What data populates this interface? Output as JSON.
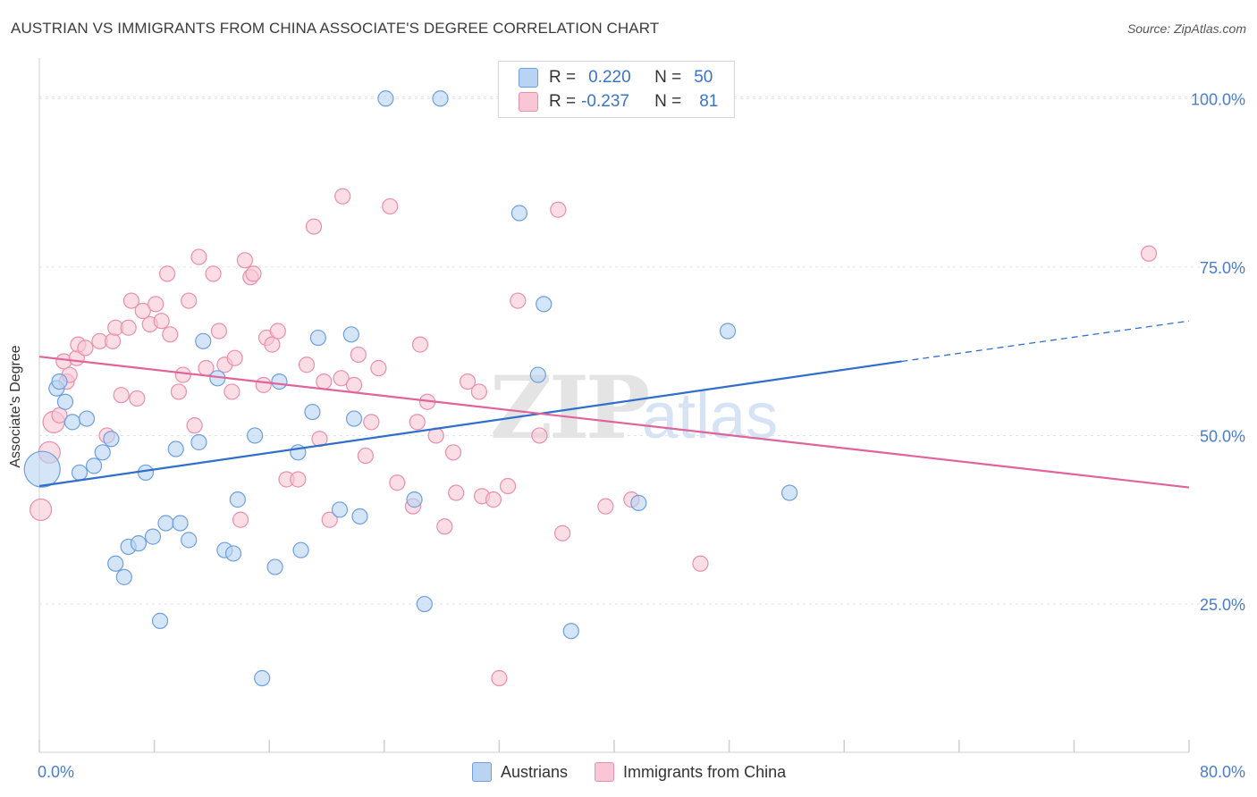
{
  "title": "AUSTRIAN VS IMMIGRANTS FROM CHINA ASSOCIATE'S DEGREE CORRELATION CHART",
  "source": "Source: ZipAtlas.com",
  "watermark": {
    "zip": "ZIP",
    "atlas": "atlas"
  },
  "legend": {
    "austrians": {
      "r_label": "R =",
      "r_value": "0.220",
      "n_label": "N =",
      "n_value": "50"
    },
    "china": {
      "r_label": "R =",
      "r_value": "-0.237",
      "n_label": "N =",
      "n_value": "81"
    }
  },
  "bottom_legend": {
    "austrians": "Austrians",
    "china": "Immigrants from China"
  },
  "colors": {
    "blue_fill": "#b9d3f3",
    "blue_stroke": "#6d9fe0",
    "blue_line": "#2f6fca",
    "pink_fill": "#f8c6d4",
    "pink_stroke": "#e98fab",
    "pink_line": "#e0649a",
    "tick_label": "#4a7dcc",
    "grid": "#e2e2e2"
  },
  "chart_data": {
    "type": "scatter",
    "title": "AUSTRIAN VS IMMIGRANTS FROM CHINA ASSOCIATE'S DEGREE CORRELATION CHART",
    "xlabel": "",
    "ylabel": "Associate's Degree",
    "xlim": [
      0,
      80
    ],
    "ylim": [
      3,
      106
    ],
    "x_tick_labels": [
      "0.0%",
      "80.0%"
    ],
    "y_ticks": [
      25,
      50,
      75,
      100
    ],
    "y_tick_labels": [
      "25.0%",
      "50.0%",
      "75.0%",
      "100.0%"
    ],
    "grid": true,
    "legend_position": "top-center",
    "series": [
      {
        "name": "Austrians",
        "color": "#6d9fe0",
        "trend": {
          "x0": 0,
          "y0": 42.5,
          "x1": 60,
          "y1": 61,
          "dash_to_x": 80,
          "dash_to_y": 67
        },
        "points": [
          [
            0.2,
            45,
            3
          ],
          [
            1.2,
            57,
            1
          ],
          [
            1.4,
            58,
            1
          ],
          [
            1.8,
            55,
            1
          ],
          [
            2.3,
            52,
            1
          ],
          [
            2.8,
            44.5,
            1
          ],
          [
            3.3,
            52.5,
            1
          ],
          [
            3.8,
            45.5,
            1
          ],
          [
            4.4,
            47.5,
            1
          ],
          [
            5.0,
            49.5,
            1
          ],
          [
            5.3,
            31,
            1
          ],
          [
            5.9,
            29,
            1
          ],
          [
            6.2,
            33.5,
            1
          ],
          [
            6.9,
            34,
            1
          ],
          [
            7.4,
            44.5,
            1
          ],
          [
            7.9,
            35,
            1
          ],
          [
            8.4,
            22.5,
            1
          ],
          [
            8.8,
            37,
            1
          ],
          [
            9.5,
            48,
            1
          ],
          [
            9.8,
            37,
            1
          ],
          [
            10.4,
            34.5,
            1
          ],
          [
            11.1,
            49,
            1
          ],
          [
            11.4,
            64,
            1
          ],
          [
            12.4,
            58.5,
            1
          ],
          [
            12.9,
            33,
            1
          ],
          [
            13.5,
            32.5,
            1
          ],
          [
            13.8,
            40.5,
            1
          ],
          [
            15.0,
            50,
            1
          ],
          [
            15.5,
            14,
            1
          ],
          [
            16.4,
            30.5,
            1
          ],
          [
            16.7,
            58,
            1
          ],
          [
            18.0,
            47.5,
            1
          ],
          [
            18.2,
            33,
            1
          ],
          [
            19.0,
            53.5,
            1
          ],
          [
            19.4,
            64.5,
            1
          ],
          [
            20.9,
            39,
            1
          ],
          [
            21.7,
            65,
            1
          ],
          [
            21.9,
            52.5,
            1
          ],
          [
            22.3,
            38,
            1
          ],
          [
            24.1,
            100,
            1
          ],
          [
            26.1,
            40.5,
            1
          ],
          [
            26.8,
            25,
            1
          ],
          [
            27.9,
            100,
            1
          ],
          [
            33.4,
            83,
            1
          ],
          [
            34.7,
            59,
            1
          ],
          [
            35.1,
            69.5,
            1
          ],
          [
            37.0,
            21,
            1
          ],
          [
            41.7,
            40,
            1
          ],
          [
            47.9,
            65.5,
            1
          ],
          [
            52.2,
            41.5,
            1
          ]
        ]
      },
      {
        "name": "Immigrants from China",
        "color": "#e98fab",
        "trend": {
          "x0": 0,
          "y0": 61.7,
          "x1": 80,
          "y1": 42.3
        },
        "points": [
          [
            0.1,
            39,
            2
          ],
          [
            0.7,
            47.5,
            2
          ],
          [
            1.0,
            52,
            2
          ],
          [
            1.4,
            53,
            1
          ],
          [
            1.7,
            61,
            1
          ],
          [
            1.9,
            58,
            1
          ],
          [
            2.1,
            59,
            1
          ],
          [
            2.6,
            61.5,
            1
          ],
          [
            2.7,
            63.5,
            1
          ],
          [
            3.2,
            63,
            1
          ],
          [
            4.2,
            64,
            1
          ],
          [
            4.7,
            50,
            1
          ],
          [
            5.1,
            64,
            1
          ],
          [
            5.3,
            66,
            1
          ],
          [
            5.7,
            56,
            1
          ],
          [
            6.2,
            66,
            1
          ],
          [
            6.4,
            70,
            1
          ],
          [
            6.8,
            55.5,
            1
          ],
          [
            7.2,
            68.5,
            1
          ],
          [
            7.7,
            66.5,
            1
          ],
          [
            8.1,
            69.5,
            1
          ],
          [
            8.5,
            67,
            1
          ],
          [
            8.9,
            74,
            1
          ],
          [
            9.1,
            65,
            1
          ],
          [
            9.7,
            56.5,
            1
          ],
          [
            10.0,
            59,
            1
          ],
          [
            10.4,
            70,
            1
          ],
          [
            10.8,
            51.5,
            1
          ],
          [
            11.1,
            76.5,
            1
          ],
          [
            11.6,
            60,
            1
          ],
          [
            12.1,
            74,
            1
          ],
          [
            12.5,
            65.5,
            1
          ],
          [
            12.9,
            60.5,
            1
          ],
          [
            13.4,
            56.5,
            1
          ],
          [
            13.6,
            61.5,
            1
          ],
          [
            14.0,
            37.5,
            1
          ],
          [
            14.3,
            76,
            1
          ],
          [
            14.7,
            73.5,
            1
          ],
          [
            14.9,
            74,
            1
          ],
          [
            15.6,
            57.5,
            1
          ],
          [
            15.8,
            64.5,
            1
          ],
          [
            16.2,
            63.5,
            1
          ],
          [
            16.6,
            65.5,
            1
          ],
          [
            17.2,
            43.5,
            1
          ],
          [
            18.0,
            43.5,
            1
          ],
          [
            18.6,
            60.5,
            1
          ],
          [
            19.1,
            81,
            1
          ],
          [
            19.5,
            49.5,
            1
          ],
          [
            19.8,
            58,
            1
          ],
          [
            20.2,
            37.5,
            1
          ],
          [
            21.0,
            58.5,
            1
          ],
          [
            21.1,
            85.5,
            1
          ],
          [
            21.9,
            57.5,
            1
          ],
          [
            22.2,
            62,
            1
          ],
          [
            22.7,
            47,
            1
          ],
          [
            23.1,
            52,
            1
          ],
          [
            23.6,
            60,
            1
          ],
          [
            24.4,
            84,
            1
          ],
          [
            24.9,
            43,
            1
          ],
          [
            26.0,
            39.5,
            1
          ],
          [
            26.3,
            52,
            1
          ],
          [
            26.5,
            63.5,
            1
          ],
          [
            27.0,
            55,
            1
          ],
          [
            27.6,
            50,
            1
          ],
          [
            28.2,
            36.5,
            1
          ],
          [
            28.8,
            47.5,
            1
          ],
          [
            29.0,
            41.5,
            1
          ],
          [
            29.8,
            58,
            1
          ],
          [
            30.6,
            56.5,
            1
          ],
          [
            30.8,
            41,
            1
          ],
          [
            31.6,
            40.5,
            1
          ],
          [
            32.0,
            14,
            1
          ],
          [
            32.6,
            42.5,
            1
          ],
          [
            33.3,
            70,
            1
          ],
          [
            34.8,
            50,
            1
          ],
          [
            36.1,
            83.5,
            1
          ],
          [
            36.4,
            35.5,
            1
          ],
          [
            39.4,
            39.5,
            1
          ],
          [
            41.2,
            40.5,
            1
          ],
          [
            46.0,
            31,
            1
          ],
          [
            77.2,
            77,
            1
          ]
        ]
      }
    ]
  }
}
